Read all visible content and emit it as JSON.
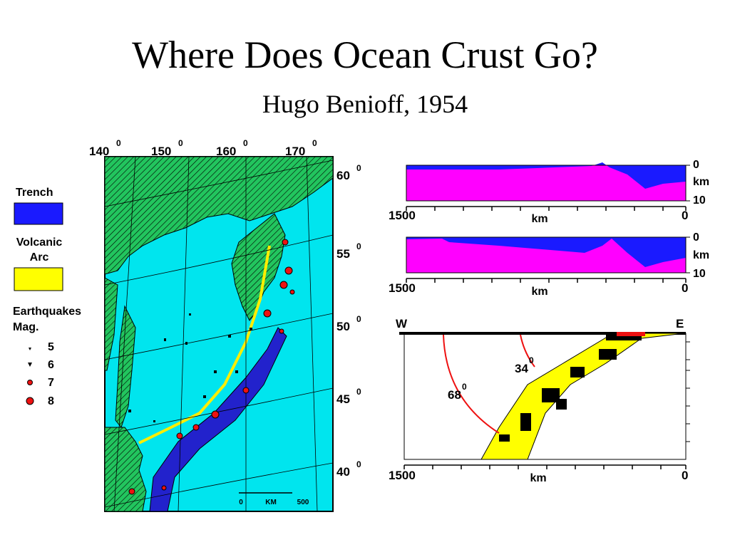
{
  "title": "Where Does Ocean Crust Go?",
  "subtitle": "Hugo Benioff, 1954",
  "legend": {
    "trench": "Trench",
    "volcanic_arc": [
      "Volcanic",
      "Arc"
    ],
    "earthquakes": [
      "Earthquakes",
      "Mag."
    ],
    "magnitudes": [
      "5",
      "6",
      "7",
      "8"
    ]
  },
  "map": {
    "longitudes": [
      "140",
      "150",
      "160",
      "170"
    ],
    "latitudes": [
      "60",
      "55",
      "50",
      "45",
      "40"
    ],
    "degree": "0",
    "scale": [
      "0",
      "KM",
      "500"
    ]
  },
  "profiles": [
    {
      "depth_labels": [
        "0",
        "km",
        "10"
      ],
      "distance_labels": [
        "1500",
        "km",
        "0"
      ]
    },
    {
      "depth_labels": [
        "0",
        "km",
        "10"
      ],
      "distance_labels": [
        "1500",
        "km",
        "0"
      ]
    }
  ],
  "cross_section": {
    "west": "W",
    "east": "E",
    "angles": [
      "34",
      "68"
    ],
    "degree": "0",
    "distance_labels": [
      "1500",
      "km",
      "0"
    ]
  }
}
